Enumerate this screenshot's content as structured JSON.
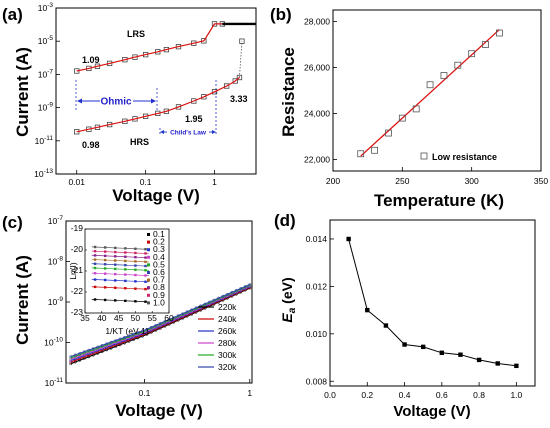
{
  "chart_data": [
    {
      "id": "a",
      "type": "scatter",
      "panel_label": "(a)",
      "xlabel": "Voltage (V)",
      "ylabel": "Current (A)",
      "xscale": "log",
      "yscale": "log",
      "xlim": [
        0.005,
        4
      ],
      "ylim": [
        1e-13,
        0.001
      ],
      "xticks": [
        "0.01",
        "0.1",
        "1"
      ],
      "yticks": [
        "10-13",
        "10-11",
        "10-9",
        "10-7",
        "10-5",
        "10-3"
      ],
      "series": [
        {
          "name": "LRS",
          "x": [
            0.01,
            0.015,
            0.02,
            0.03,
            0.05,
            0.07,
            0.1,
            0.15,
            0.2,
            0.3,
            0.5,
            0.7,
            1.0,
            1.3
          ],
          "y": [
            1.6e-07,
            2.3e-07,
            3.1e-07,
            4.6e-07,
            7.7e-07,
            1.1e-06,
            1.55e-06,
            2.3e-06,
            3.1e-06,
            4.7e-06,
            7.6e-06,
            1.05e-05,
            0.00011,
            0.00011
          ]
        },
        {
          "name": "HRS",
          "x": [
            0.01,
            0.015,
            0.02,
            0.03,
            0.05,
            0.07,
            0.1,
            0.15,
            0.2,
            0.3,
            0.5,
            0.7,
            1.0,
            1.5,
            2.0,
            2.3,
            2.5
          ],
          "y": [
            3.5e-11,
            5e-11,
            6.5e-11,
            9.5e-11,
            1.5e-10,
            2.1e-10,
            3e-10,
            4.5e-10,
            6e-10,
            1.1e-09,
            2.5e-09,
            4.5e-09,
            9e-09,
            2e-08,
            4e-08,
            6.5e-08,
            1e-05
          ]
        }
      ],
      "annotations": {
        "lrs": "LRS",
        "hrs": "HRS",
        "slope_lrs": "1.09",
        "slope_hrs_low": "0.98",
        "slope_hrs_mid": "1.95",
        "slope_hrs_high": "3.33",
        "ohmic": "Ohmic",
        "childs": "Child's Law"
      }
    },
    {
      "id": "b",
      "type": "scatter",
      "panel_label": "(b)",
      "xlabel": "Temperature (K)",
      "ylabel": "Resistance",
      "xlim": [
        200,
        350
      ],
      "ylim": [
        21500,
        28500
      ],
      "xticks": [
        "200",
        "250",
        "300",
        "350"
      ],
      "yticks": [
        "22,000",
        "24,000",
        "26,000",
        "28,000"
      ],
      "series": [
        {
          "name": "Low resistance",
          "x": [
            220,
            230,
            240,
            250,
            260,
            270,
            280,
            290,
            300,
            310,
            320
          ],
          "y": [
            22250,
            22400,
            23150,
            23800,
            24200,
            25250,
            25650,
            26100,
            26600,
            27000,
            27500
          ]
        }
      ],
      "fit": {
        "x": [
          220,
          320
        ],
        "y": [
          22150,
          27650
        ]
      },
      "legend": "Low resistance"
    },
    {
      "id": "c",
      "type": "line",
      "panel_label": "(c)",
      "xlabel": "Voltage (V)",
      "ylabel": "Current (A)",
      "xscale": "log",
      "yscale": "log",
      "xlim": [
        0.018,
        1.05
      ],
      "ylim": [
        1e-11,
        1e-07
      ],
      "xticks": [
        "0.1",
        "1"
      ],
      "yticks": [
        "10-11",
        "10-10",
        "10-9",
        "10-8",
        "10-7"
      ],
      "series": [
        {
          "name": "220k",
          "color": "#000000",
          "x": [
            0.02,
            0.1,
            1.0
          ],
          "y": [
            3e-11,
            1.5e-10,
            2.2e-09
          ]
        },
        {
          "name": "240k",
          "color": "#cc0000",
          "x": [
            0.02,
            0.1,
            1.0
          ],
          "y": [
            3.3e-11,
            1.6e-10,
            2.3e-09
          ]
        },
        {
          "name": "260k",
          "color": "#2233cc",
          "x": [
            0.02,
            0.1,
            1.0
          ],
          "y": [
            3.6e-11,
            1.7e-10,
            2.4e-09
          ]
        },
        {
          "name": "280k",
          "color": "#cc44cc",
          "x": [
            0.02,
            0.1,
            1.0
          ],
          "y": [
            3.9e-11,
            1.8e-10,
            2.5e-09
          ]
        },
        {
          "name": "300k",
          "color": "#22aa22",
          "x": [
            0.02,
            0.1,
            1.0
          ],
          "y": [
            4.2e-11,
            1.9e-10,
            2.6e-09
          ]
        },
        {
          "name": "320k",
          "color": "#3344aa",
          "x": [
            0.02,
            0.1,
            1.0
          ],
          "y": [
            4.5e-11,
            2e-10,
            2.7e-09
          ]
        }
      ],
      "inset": {
        "xlabel": "1/KT  (eV-1)",
        "ylabel": "Ln(I)",
        "xlim": [
          35,
          60
        ],
        "ylim": [
          -23,
          -19
        ],
        "xticks": [
          "35",
          "40",
          "45",
          "50",
          "55",
          "60"
        ],
        "yticks": [
          "-19",
          "-20",
          "-21",
          "-22",
          "-23"
        ],
        "series": [
          {
            "name": "0.1",
            "color": "#000000",
            "y": -22.35
          },
          {
            "name": "0.2",
            "color": "#cc0000",
            "y": -21.75
          },
          {
            "name": "0.3",
            "color": "#2233cc",
            "y": -21.4
          },
          {
            "name": "0.4",
            "color": "#cc44cc",
            "y": -21.1
          },
          {
            "name": "0.5",
            "color": "#22aa22",
            "y": -20.85
          },
          {
            "name": "0.6",
            "color": "#3344aa",
            "y": -20.65
          },
          {
            "name": "0.7",
            "color": "#aa6622",
            "y": -20.45
          },
          {
            "name": "0.8",
            "color": "#882288",
            "y": -20.25
          },
          {
            "name": "0.9",
            "color": "#cc2266",
            "y": -20.05
          },
          {
            "name": "1.0",
            "color": "#555555",
            "y": -19.85
          }
        ]
      }
    },
    {
      "id": "d",
      "type": "line",
      "panel_label": "(d)",
      "xlabel": "Voltage (V)",
      "ylabel": "Ea (eV)",
      "xlim": [
        0.0,
        1.1
      ],
      "ylim": [
        0.0078,
        0.0148
      ],
      "xticks": [
        "0.0",
        "0.2",
        "0.4",
        "0.6",
        "0.8",
        "1.0"
      ],
      "yticks": [
        "0.008",
        "0.010",
        "0.012",
        "0.014"
      ],
      "series": [
        {
          "name": "Ea",
          "x": [
            0.1,
            0.2,
            0.3,
            0.4,
            0.5,
            0.6,
            0.7,
            0.8,
            0.9,
            1.0
          ],
          "y": [
            0.014,
            0.011,
            0.01035,
            0.00955,
            0.00945,
            0.0092,
            0.00912,
            0.0089,
            0.00875,
            0.00865
          ]
        }
      ]
    }
  ]
}
